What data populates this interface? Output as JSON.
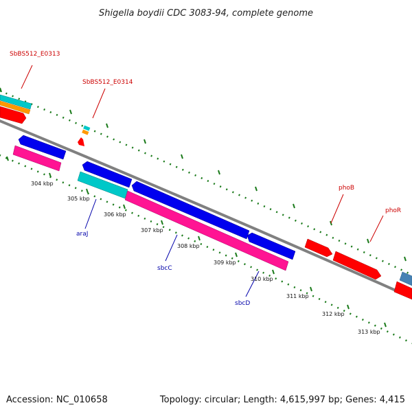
{
  "title": "Shigella boydii CDC 3083-94, complete genome",
  "footer": {
    "accession": "Accession: NC_010658",
    "summary": "Topology: circular; Length: 4,615,997 bp; Genes: 4,415"
  },
  "ticks": [
    "304 kbp",
    "305 kbp",
    "306 kbp",
    "307 kbp",
    "308 kbp",
    "309 kbp",
    "310 kbp",
    "311 kbp",
    "312 kbp",
    "313 kbp"
  ],
  "genes": {
    "sbbs0313": "SbBS512_E0313",
    "sbbs0314": "SbBS512_E0314",
    "phob": "phoB",
    "phor": "phoR",
    "aral": "araJ",
    "sbcc": "sbcC",
    "sbcd": "sbcD"
  },
  "colors": {
    "backbone": "#808080",
    "tick_dots": "#1a7a1a",
    "forward_gene": "#ff0000",
    "reverse_gene": "#0000ee",
    "rna_cyan": "#00c8c8",
    "orange": "#ff9900",
    "pink": "#ff1493",
    "steelblue": "#4682b4",
    "label_red": "#cc0000",
    "label_blue": "#0000aa"
  }
}
